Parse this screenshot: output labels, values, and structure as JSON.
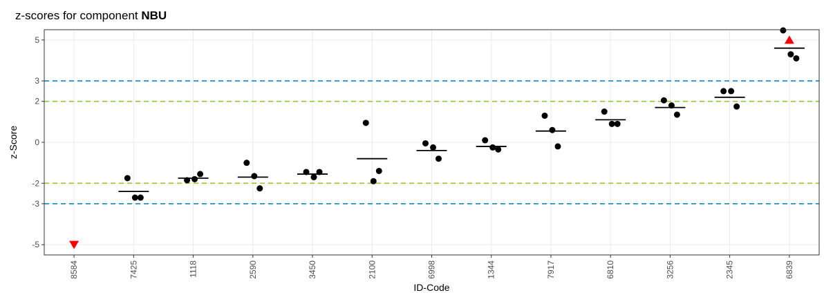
{
  "chart_data": {
    "type": "scatter",
    "title_prefix": "z-scores for component ",
    "title_component": "NBU",
    "xlabel": "ID-Code",
    "ylabel": "z-Score",
    "ylim": [
      -5.5,
      5.5
    ],
    "y_ticks": [
      -5,
      -3,
      -2,
      0,
      2,
      3,
      5
    ],
    "grid": true,
    "categories": [
      "8584",
      "7425",
      "1118",
      "2590",
      "3450",
      "2100",
      "6998",
      "1344",
      "7917",
      "6810",
      "3256",
      "2345",
      "6839"
    ],
    "points": [
      {
        "id": "7425",
        "values": [
          -1.75,
          -2.7,
          -2.7
        ]
      },
      {
        "id": "1118",
        "values": [
          -1.85,
          -1.8,
          -1.55
        ]
      },
      {
        "id": "2590",
        "values": [
          -1.0,
          -1.65,
          -2.25
        ]
      },
      {
        "id": "3450",
        "values": [
          -1.45,
          -1.7,
          -1.45
        ]
      },
      {
        "id": "2100",
        "values": [
          0.95,
          -1.9,
          -1.4
        ]
      },
      {
        "id": "6998",
        "values": [
          -0.05,
          -0.25,
          -0.8
        ]
      },
      {
        "id": "1344",
        "values": [
          0.1,
          -0.25,
          -0.35
        ]
      },
      {
        "id": "7917",
        "values": [
          1.3,
          0.6,
          -0.2
        ]
      },
      {
        "id": "6810",
        "values": [
          1.5,
          0.9,
          0.9
        ]
      },
      {
        "id": "3256",
        "values": [
          2.05,
          1.8,
          1.35
        ]
      },
      {
        "id": "2345",
        "values": [
          2.5,
          2.5,
          1.75
        ]
      },
      {
        "id": "6839",
        "values": [
          5.5,
          4.3,
          4.1
        ]
      }
    ],
    "means": [
      {
        "id": "7425",
        "value": -2.4
      },
      {
        "id": "1118",
        "value": -1.75
      },
      {
        "id": "2590",
        "value": -1.7
      },
      {
        "id": "3450",
        "value": -1.55
      },
      {
        "id": "2100",
        "value": -0.8
      },
      {
        "id": "6998",
        "value": -0.4
      },
      {
        "id": "1344",
        "value": -0.2
      },
      {
        "id": "7917",
        "value": 0.55
      },
      {
        "id": "6810",
        "value": 1.1
      },
      {
        "id": "3256",
        "value": 1.7
      },
      {
        "id": "2345",
        "value": 2.2
      },
      {
        "id": "6839",
        "value": 4.6
      }
    ],
    "out_of_range_markers": [
      {
        "id": "8584",
        "value": -5,
        "direction": "down",
        "color": "#ff0000"
      },
      {
        "id": "6839",
        "value": 5,
        "direction": "up",
        "color": "#ff0000"
      }
    ],
    "reference_lines": [
      {
        "value": 3,
        "color": "#1f8fc9"
      },
      {
        "value": -3,
        "color": "#1f8fc9"
      },
      {
        "value": 2,
        "color": "#9acd32"
      },
      {
        "value": -2,
        "color": "#9acd32"
      }
    ],
    "colors": {
      "points": "#000000",
      "mean_line": "#000000",
      "grid": "#ebebeb",
      "panel_border": "#333333"
    }
  }
}
